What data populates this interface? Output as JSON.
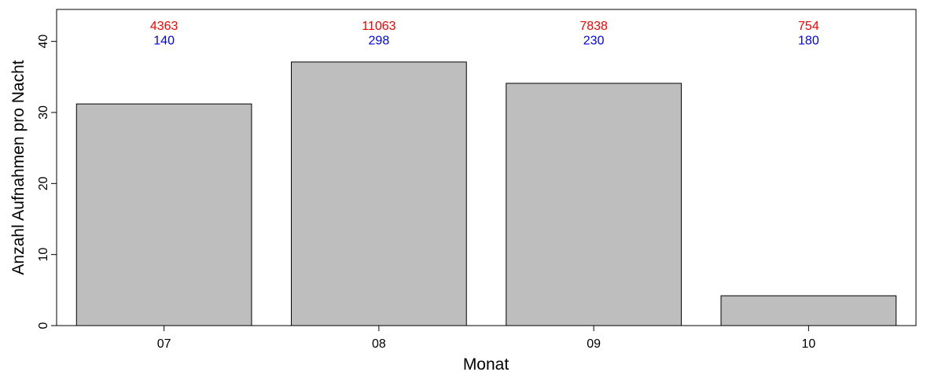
{
  "chart_data": {
    "type": "bar",
    "title": "",
    "xlabel": "Monat",
    "ylabel": "Anzahl Aufnahmen pro Nacht",
    "categories": [
      "07",
      "08",
      "09",
      "10"
    ],
    "values": [
      31.2,
      37.1,
      34.1,
      4.2
    ],
    "ylim": [
      0,
      44.5
    ],
    "yticks": [
      "0",
      "10",
      "20",
      "30",
      "40"
    ],
    "bar_color": "#bebebe",
    "grid": false,
    "annotations": {
      "top": {
        "color": "#ff0000",
        "values": [
          "4363",
          "11063",
          "7838",
          "754"
        ]
      },
      "bottom": {
        "color": "#0000ff",
        "values": [
          "140",
          "298",
          "230",
          "180"
        ]
      }
    }
  }
}
